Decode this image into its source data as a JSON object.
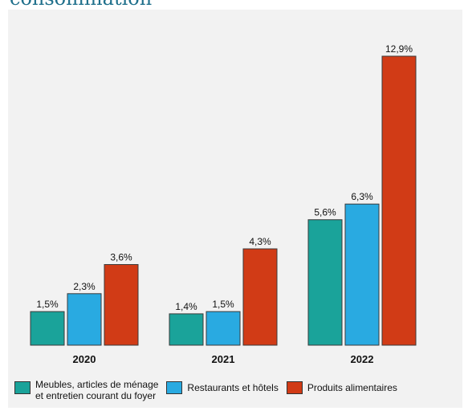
{
  "title_fragment": "consommation",
  "chart_data": {
    "type": "bar",
    "categories": [
      "2020",
      "2021",
      "2022"
    ],
    "series": [
      {
        "name": "Meubles, articles de ménage\net entretien courant du foyer",
        "color": "#1aa39a",
        "values": [
          1.5,
          1.4,
          5.6
        ],
        "labels": [
          "1,5%",
          "1,4%",
          "5,6%"
        ]
      },
      {
        "name": "Restaurants et hôtels",
        "color": "#29aae1",
        "values": [
          2.3,
          1.5,
          6.3
        ],
        "labels": [
          "2,3%",
          "1,5%",
          "6,3%"
        ]
      },
      {
        "name": "Produits alimentaires",
        "color": "#d13b16",
        "values": [
          3.6,
          4.3,
          12.9
        ],
        "labels": [
          "3,6%",
          "4,3%",
          "12,9%"
        ]
      }
    ],
    "ylim": [
      0,
      12.9
    ],
    "grid": false,
    "legend_position": "bottom"
  }
}
